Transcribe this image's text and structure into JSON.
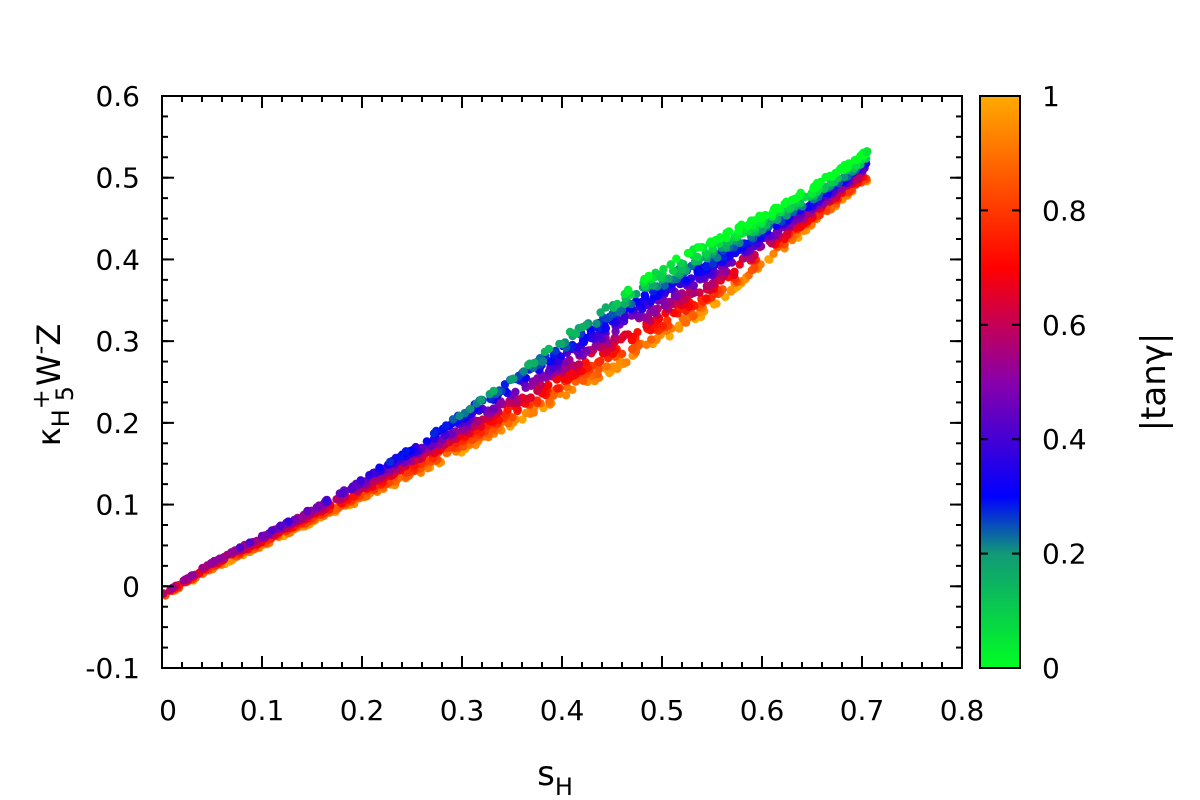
{
  "chart_data": {
    "type": "scatter",
    "title": "",
    "xlabel": "s",
    "xlabel_sub": "H",
    "ylabel_main": "κ",
    "ylabel_sub1": "H",
    "ylabel_sup1": "+",
    "ylabel_sub2": "5",
    "ylabel_mid": "W",
    "ylabel_sup2": "-",
    "ylabel_end": "Z",
    "xlim": [
      0,
      0.8
    ],
    "ylim": [
      -0.1,
      0.6
    ],
    "xticks": [
      "0",
      "0.1",
      "0.2",
      "0.3",
      "0.4",
      "0.5",
      "0.6",
      "0.7",
      "0.8"
    ],
    "yticks": [
      "-0.1",
      "0",
      "0.1",
      "0.2",
      "0.3",
      "0.4",
      "0.5",
      "0.6"
    ],
    "grid": false,
    "colorbar": {
      "label": "|tanγ|",
      "range": [
        0,
        1
      ],
      "ticks": [
        "0",
        "0.2",
        "0.4",
        "0.6",
        "0.8",
        "1"
      ],
      "colors": [
        {
          "at": 0.0,
          "color": "#00ff22"
        },
        {
          "at": 0.2,
          "color": "#119977"
        },
        {
          "at": 0.3,
          "color": "#0000ff"
        },
        {
          "at": 0.5,
          "color": "#8800aa"
        },
        {
          "at": 0.7,
          "color": "#ff0000"
        },
        {
          "at": 0.85,
          "color": "#ff5500"
        },
        {
          "at": 1.0,
          "color": "#ffaa00"
        }
      ]
    },
    "series": [
      {
        "color_variable": "|tanγ|",
        "envelope": {
          "x": [
            0,
            0.05,
            0.1,
            0.15,
            0.2,
            0.25,
            0.3,
            0.35,
            0.4,
            0.45,
            0.5,
            0.55,
            0.6,
            0.65,
            0.7
          ],
          "y_upper": [
            -0.01,
            0.03,
            0.062,
            0.096,
            0.132,
            0.17,
            0.212,
            0.256,
            0.304,
            0.35,
            0.392,
            0.424,
            0.456,
            0.49,
            0.53
          ],
          "y_lower": [
            -0.015,
            0.02,
            0.048,
            0.077,
            0.105,
            0.133,
            0.164,
            0.196,
            0.228,
            0.262,
            0.3,
            0.338,
            0.39,
            0.44,
            0.49
          ]
        },
        "x_max": 0.705,
        "y_max": 0.532,
        "count": 1800
      }
    ]
  }
}
